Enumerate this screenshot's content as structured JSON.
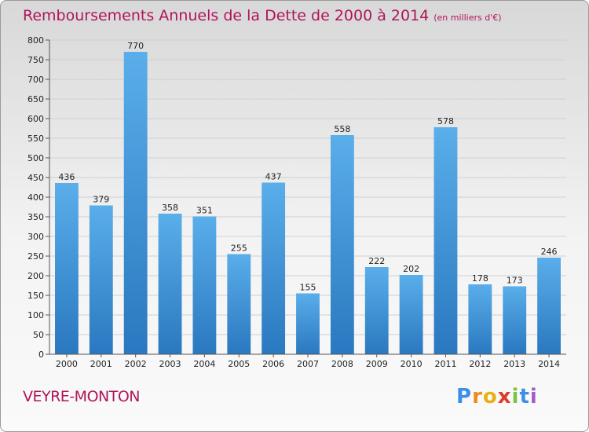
{
  "header": {
    "title": "Remboursements Annuels de la Dette de 2000 à 2014",
    "unit": "(en milliers d'€)"
  },
  "footer": {
    "commune": "VEYRE-MONTON",
    "brand": "Proxiti"
  },
  "colors": {
    "title": "#b0155a",
    "bar_top": "#5aaeea",
    "bar_bottom": "#2a78c0",
    "grid": "#d0d0d0"
  },
  "chart_data": {
    "type": "bar",
    "title": "Remboursements Annuels de la Dette de 2000 à 2014",
    "subtitle": "(en milliers d'€)",
    "categories": [
      "2000",
      "2001",
      "2002",
      "2003",
      "2004",
      "2005",
      "2006",
      "2007",
      "2008",
      "2009",
      "2010",
      "2011",
      "2012",
      "2013",
      "2014"
    ],
    "values": [
      436,
      379,
      770,
      358,
      351,
      255,
      437,
      155,
      558,
      222,
      202,
      578,
      178,
      173,
      246
    ],
    "ylim": [
      0,
      800
    ],
    "yticks": [
      0,
      50,
      100,
      150,
      200,
      250,
      300,
      350,
      400,
      450,
      500,
      550,
      600,
      650,
      700,
      750,
      800
    ],
    "grid": true,
    "data_labels": true
  }
}
